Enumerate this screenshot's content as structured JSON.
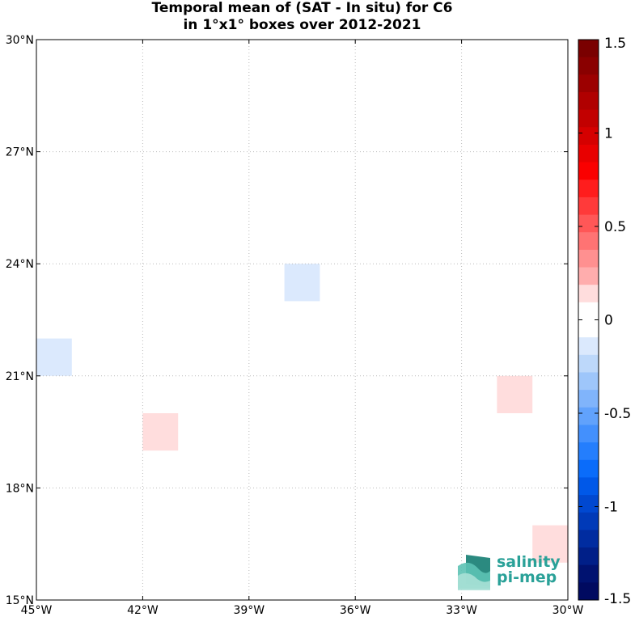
{
  "title": {
    "line1": "Temporal mean of (SAT - In situ) for C6",
    "line2": "in 1°x1° boxes over 2012-2021"
  },
  "map": {
    "lon_range": [
      -45,
      -30
    ],
    "lat_range": [
      15,
      30
    ],
    "lon_ticks": [
      {
        "value": -45,
        "label": "45°W"
      },
      {
        "value": -42,
        "label": "42°W"
      },
      {
        "value": -39,
        "label": "39°W"
      },
      {
        "value": -36,
        "label": "36°W"
      },
      {
        "value": -33,
        "label": "33°W"
      },
      {
        "value": -30,
        "label": "30°W"
      }
    ],
    "lat_ticks": [
      {
        "value": 15,
        "label": "15°N"
      },
      {
        "value": 18,
        "label": "18°N"
      },
      {
        "value": 21,
        "label": "21°N"
      },
      {
        "value": 24,
        "label": "24°N"
      },
      {
        "value": 27,
        "label": "27°N"
      },
      {
        "value": 30,
        "label": "30°N"
      }
    ],
    "grid": "dotted",
    "boxes": [
      {
        "lon": [
          -38,
          -37
        ],
        "lat": [
          23,
          24
        ],
        "value": -0.15
      },
      {
        "lon": [
          -45,
          -44
        ],
        "lat": [
          21,
          22
        ],
        "value": -0.15
      },
      {
        "lon": [
          -42,
          -41
        ],
        "lat": [
          19,
          20
        ],
        "value": 0.15
      },
      {
        "lon": [
          -32,
          -31
        ],
        "lat": [
          20,
          21
        ],
        "value": 0.15
      },
      {
        "lon": [
          -31,
          -30
        ],
        "lat": [
          16,
          17
        ],
        "value": 0.15
      }
    ]
  },
  "colorbar": {
    "range": [
      -1.5,
      1.5
    ],
    "ticks": [
      {
        "value": 1.5,
        "label": "1.5"
      },
      {
        "value": 1.0,
        "label": "1"
      },
      {
        "value": 0.5,
        "label": "0.5"
      },
      {
        "value": 0.0,
        "label": "0"
      },
      {
        "value": -0.5,
        "label": "-0.5"
      },
      {
        "value": -1.0,
        "label": "-1"
      },
      {
        "value": -1.5,
        "label": "-1.5"
      }
    ],
    "colors_top_to_bottom": [
      "#7a0000",
      "#8a0000",
      "#9c0000",
      "#b00000",
      "#c20000",
      "#d50000",
      "#e80000",
      "#fa0000",
      "#ff1d1d",
      "#ff3a3a",
      "#ff5757",
      "#ff7373",
      "#ff9090",
      "#ffadad",
      "#ffdddd",
      "#ffffff",
      "#ffffff",
      "#dbe9fd",
      "#bdd8fa",
      "#9ec6fa",
      "#80b4fb",
      "#61a2fc",
      "#4390fd",
      "#247efd",
      "#0a6cfa",
      "#0058e8",
      "#0048d0",
      "#003ab8",
      "#002ca0",
      "#001f88",
      "#001270",
      "#000a60"
    ]
  },
  "logo": {
    "line1": "salinity",
    "line2": "pi-mep",
    "color": "#2aa198"
  }
}
